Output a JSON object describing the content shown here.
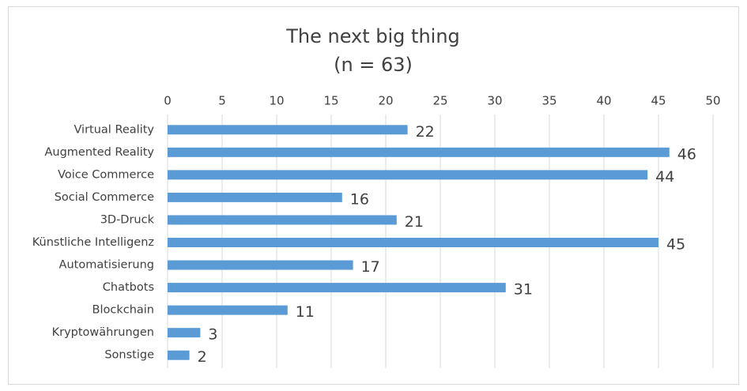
{
  "chart_data": {
    "type": "bar",
    "orientation": "horizontal",
    "title": "The next big thing",
    "subtitle": "(n = 63)",
    "categories": [
      "Virtual Reality",
      "Augmented Reality",
      "Voice Commerce",
      "Social Commerce",
      "3D-Druck",
      "Künstliche Intelligenz",
      "Automatisierung",
      "Chatbots",
      "Blockchain",
      "Kryptowährungen",
      "Sonstige"
    ],
    "values": [
      22,
      46,
      44,
      16,
      21,
      45,
      17,
      31,
      11,
      3,
      2
    ],
    "color": "#5b9bd5",
    "xlim": [
      0,
      50
    ],
    "xticks": [
      0,
      5,
      10,
      15,
      20,
      25,
      30,
      35,
      40,
      45,
      50
    ],
    "grid": true,
    "data_labels": true
  }
}
